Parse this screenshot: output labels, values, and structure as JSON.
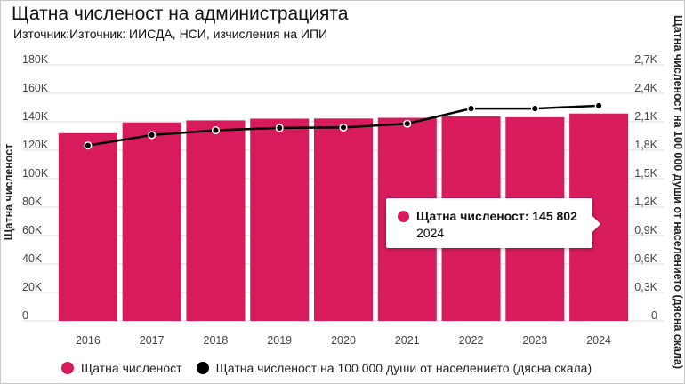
{
  "title": "Щатна численост на администрацията",
  "subtitle": "Източник:Източник: ИИСДА, НСИ, изчисления на ИПИ",
  "chart_data": {
    "type": "bar",
    "categories": [
      "2016",
      "2017",
      "2018",
      "2019",
      "2020",
      "2021",
      "2022",
      "2023",
      "2024"
    ],
    "series": [
      {
        "name": "Щатна численост",
        "type": "bar",
        "axis": "left",
        "color": "#d81b5c",
        "values": [
          132000,
          139500,
          141000,
          142200,
          142300,
          142800,
          143800,
          143200,
          145802
        ]
      },
      {
        "name": "Щатна численост на 100 000 души от населението (дясна скала)",
        "type": "line",
        "axis": "right",
        "color": "#000000",
        "values": [
          1850,
          1960,
          2010,
          2035,
          2040,
          2080,
          2240,
          2240,
          2270
        ]
      }
    ],
    "ylabel": "Щатна численост",
    "ylabel_right": "Щатна численост на 100 000 души от населението (дясна скала)",
    "ylim": [
      0,
      180000
    ],
    "ylim_right": [
      0,
      2700
    ],
    "yticks": [
      "0",
      "20K",
      "40K",
      "60K",
      "80K",
      "100K",
      "120K",
      "140K",
      "160K",
      "180K"
    ],
    "yticks_right": [
      "0",
      "0,3K",
      "0,6K",
      "0,9K",
      "1,2K",
      "1,5K",
      "1,8K",
      "2,1K",
      "2,4K",
      "2,7K"
    ],
    "grid": true,
    "legend": "bottom-left"
  },
  "tooltip": {
    "label": "Щатна численост: 145 802",
    "year": "2024",
    "color": "#d81b5c"
  }
}
